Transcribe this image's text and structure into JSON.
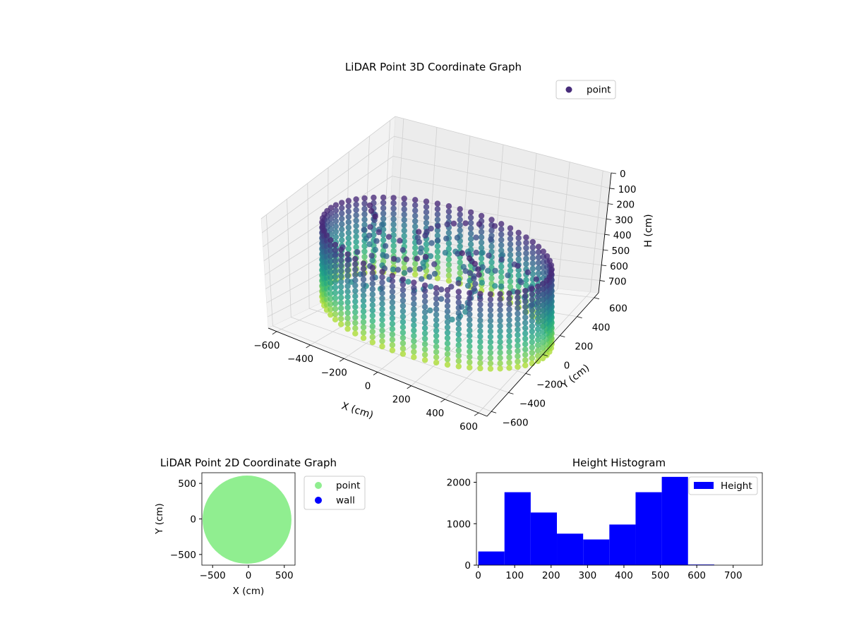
{
  "chart_data": [
    {
      "type": "scatter",
      "projection": "3d",
      "title": "LiDAR Point 3D Coordinate Graph",
      "xlabel": "X (cm)",
      "ylabel": "Y (cm)",
      "zlabel": "H (cm)",
      "xticks": [
        -600,
        -400,
        -200,
        0,
        200,
        400,
        600
      ],
      "yticks": [
        -600,
        -400,
        -200,
        0,
        200,
        400,
        600
      ],
      "zticks": [
        0,
        100,
        200,
        300,
        400,
        500,
        600,
        700
      ],
      "xlim": [
        -650,
        650
      ],
      "ylim": [
        -650,
        650
      ],
      "zlim": [
        0,
        780
      ],
      "z_inverted": true,
      "colormap": "viridis",
      "legend": {
        "placement": "top-right",
        "entries": [
          {
            "label": "point",
            "color": "#472c7a"
          }
        ]
      },
      "series": [
        {
          "name": "point",
          "ring_radius": 600,
          "height_range": [
            0,
            650
          ]
        }
      ]
    },
    {
      "type": "scatter",
      "title": "LiDAR Point 2D Coordinate Graph",
      "xlabel": "X (cm)",
      "ylabel": "Y (cm)",
      "xticks": [
        -500,
        0,
        500
      ],
      "yticks": [
        -500,
        0,
        500
      ],
      "xlim": [
        -650,
        650
      ],
      "ylim": [
        -650,
        650
      ],
      "legend": {
        "placement": "outside-right",
        "entries": [
          {
            "label": "point",
            "color": "#90ee90"
          },
          {
            "label": "wall",
            "color": "#0000ff"
          }
        ]
      },
      "series": [
        {
          "name": "point",
          "color": "#90ee90",
          "shape": "disk",
          "center": [
            -20,
            -10
          ],
          "radius": 620
        },
        {
          "name": "wall",
          "color": "#0000ff",
          "values": []
        }
      ]
    },
    {
      "type": "bar",
      "title": "Height Histogram",
      "xlabel": "",
      "ylabel": "",
      "bin_edges": [
        0,
        72,
        144,
        216,
        288,
        360,
        432,
        504,
        576,
        648,
        720
      ],
      "values": [
        330,
        1760,
        1270,
        760,
        620,
        980,
        1760,
        2130,
        15,
        0
      ],
      "color": "#0000ff",
      "xticks": [
        0,
        100,
        200,
        300,
        400,
        500,
        600,
        700
      ],
      "yticks": [
        0,
        1000,
        2000
      ],
      "xlim": [
        -5,
        780
      ],
      "ylim": [
        0,
        2230
      ],
      "legend": {
        "placement": "top-right",
        "entries": [
          {
            "label": "Height",
            "color": "#0000ff"
          }
        ]
      }
    }
  ]
}
